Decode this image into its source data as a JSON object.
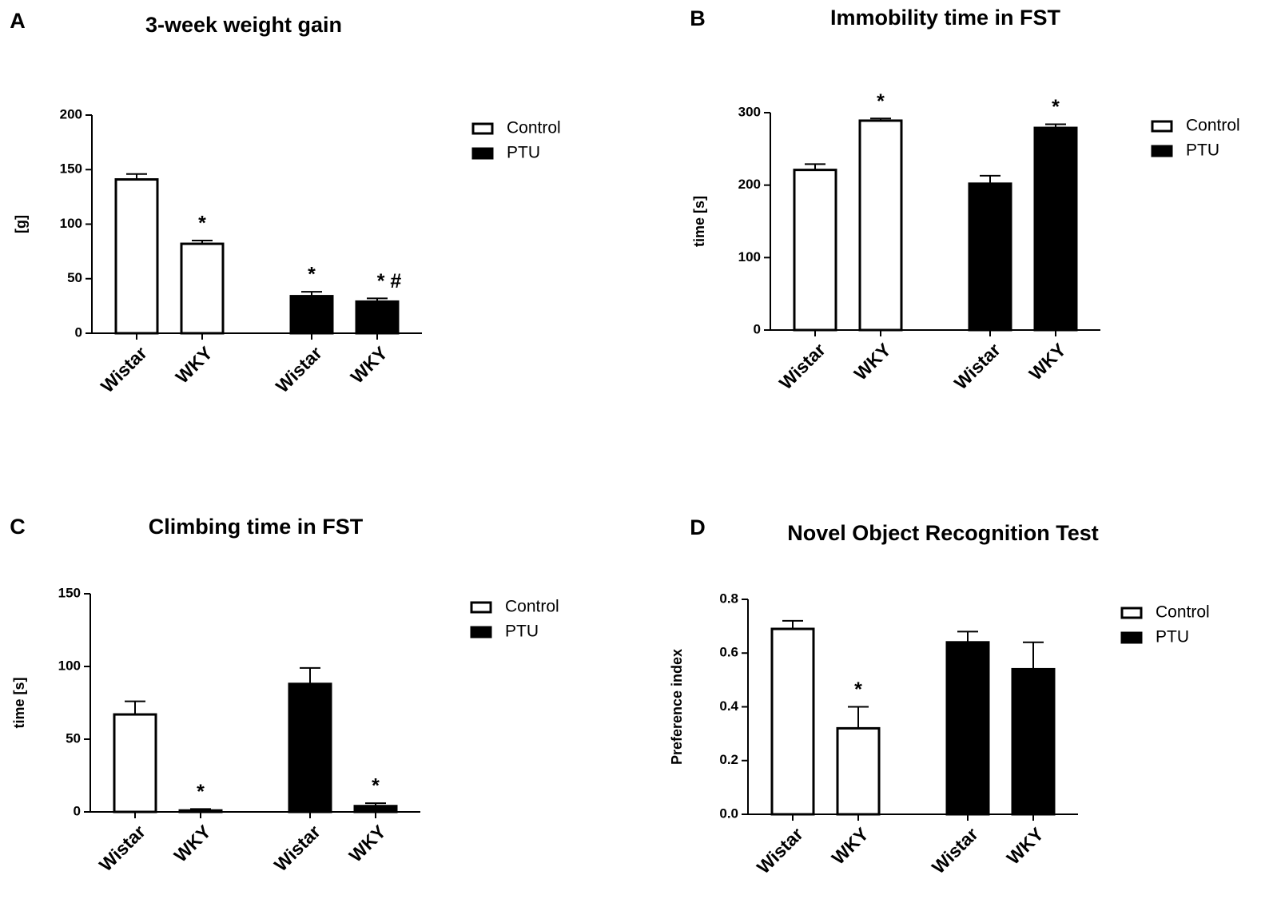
{
  "chart_data": [
    {
      "type": "bar",
      "label": "A",
      "title": "3-week weight gain",
      "ylabel": "[g]",
      "categories": [
        "Wistar",
        "WKY",
        "Wistar",
        "WKY"
      ],
      "series": [
        {
          "name": "Control",
          "color": "#ffffff",
          "values": [
            141,
            82,
            null,
            null
          ],
          "errors": [
            5,
            3,
            null,
            null
          ]
        },
        {
          "name": "PTU",
          "color": "#000000",
          "values": [
            null,
            null,
            34,
            29
          ],
          "errors": [
            null,
            null,
            4,
            3
          ]
        }
      ],
      "annotations": [
        null,
        "*",
        "*",
        "* #"
      ],
      "ylim": [
        0,
        200
      ],
      "yticks": [
        0,
        50,
        100,
        150,
        200
      ]
    },
    {
      "type": "bar",
      "label": "B",
      "title": "Immobility time in FST",
      "ylabel": "time [s]",
      "categories": [
        "Wistar",
        "WKY",
        "Wistar",
        "WKY"
      ],
      "series": [
        {
          "name": "Control",
          "color": "#ffffff",
          "values": [
            221,
            289,
            null,
            null
          ],
          "errors": [
            8,
            3,
            null,
            null
          ]
        },
        {
          "name": "PTU",
          "color": "#000000",
          "values": [
            null,
            null,
            202,
            279
          ],
          "errors": [
            null,
            null,
            11,
            5
          ]
        }
      ],
      "annotations": [
        null,
        "*",
        null,
        "*"
      ],
      "ylim": [
        0,
        300
      ],
      "yticks": [
        0,
        100,
        200,
        300
      ]
    },
    {
      "type": "bar",
      "label": "C",
      "title": "Climbing time in FST",
      "ylabel": "time [s]",
      "categories": [
        "Wistar",
        "WKY",
        "Wistar",
        "WKY"
      ],
      "series": [
        {
          "name": "Control",
          "color": "#ffffff",
          "values": [
            67,
            1,
            null,
            null
          ],
          "errors": [
            9,
            1,
            null,
            null
          ]
        },
        {
          "name": "PTU",
          "color": "#000000",
          "values": [
            null,
            null,
            88,
            4
          ],
          "errors": [
            null,
            null,
            11,
            2
          ]
        }
      ],
      "annotations": [
        null,
        "*",
        null,
        "*"
      ],
      "ylim": [
        0,
        150
      ],
      "yticks": [
        0,
        50,
        100,
        150
      ]
    },
    {
      "type": "bar",
      "label": "D",
      "title": "Novel Object Recognition Test",
      "ylabel": "Preference index",
      "categories": [
        "Wistar",
        "WKY",
        "Wistar",
        "WKY"
      ],
      "series": [
        {
          "name": "Control",
          "color": "#ffffff",
          "values": [
            0.69,
            0.32,
            null,
            null
          ],
          "errors": [
            0.03,
            0.08,
            null,
            null
          ]
        },
        {
          "name": "PTU",
          "color": "#000000",
          "values": [
            null,
            null,
            0.64,
            0.54
          ],
          "errors": [
            null,
            null,
            0.04,
            0.1
          ]
        }
      ],
      "annotations": [
        null,
        "*",
        null,
        null
      ],
      "ylim": [
        0,
        0.8
      ],
      "yticks": [
        {
          "value": 0,
          "label": "0.0"
        },
        0.2,
        0.4,
        0.6,
        0.8
      ]
    }
  ]
}
